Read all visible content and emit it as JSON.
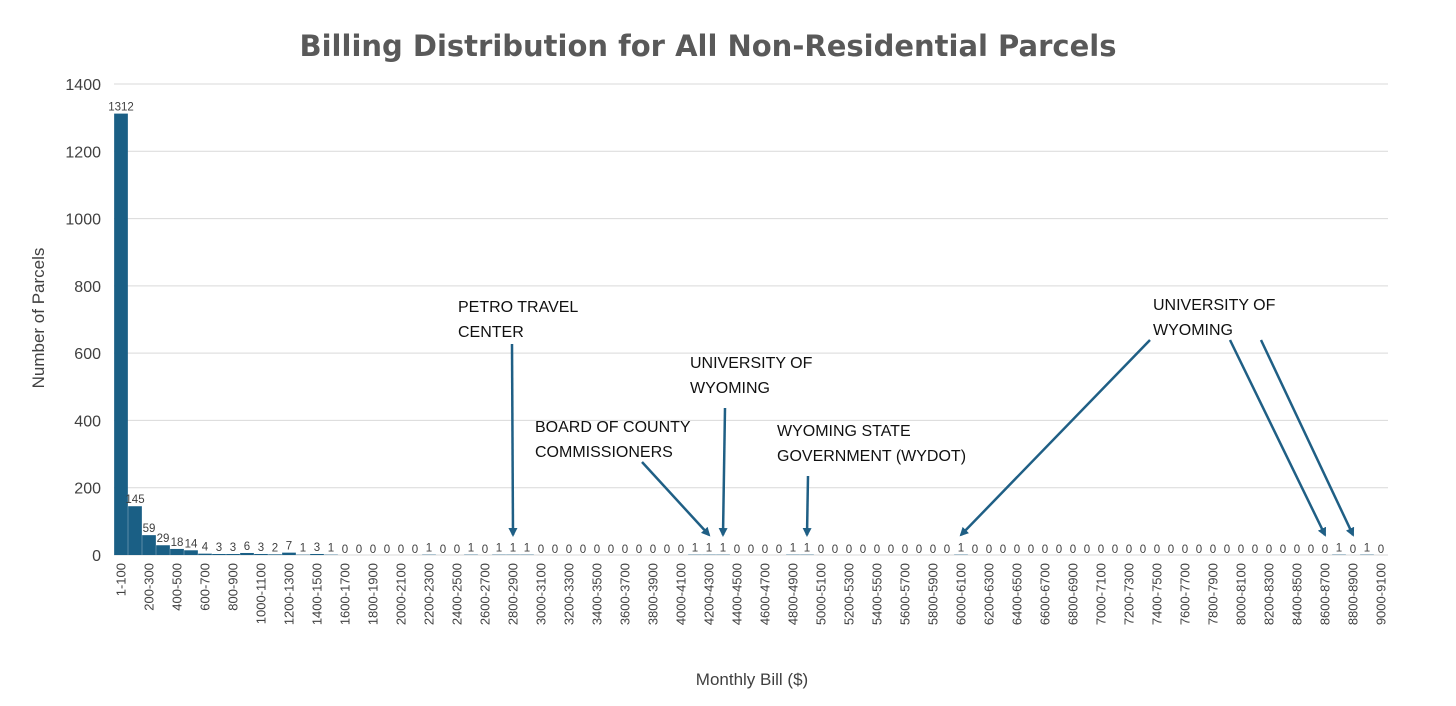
{
  "chart_data": {
    "type": "bar",
    "title": "Billing Distribution for All Non-Residential Parcels",
    "xlabel": "Monthly Bill ($)",
    "ylabel": "Number of Parcels",
    "ylim": [
      0,
      1400
    ],
    "yticks": [
      0,
      200,
      400,
      600,
      800,
      1000,
      1200,
      1400
    ],
    "grid": true,
    "bar_color": "#1a5f85",
    "categories": [
      "1-100",
      "100-200",
      "200-300",
      "300-400",
      "400-500",
      "500-600",
      "600-700",
      "700-800",
      "800-900",
      "900-1000",
      "1000-1100",
      "1100-1200",
      "1200-1300",
      "1300-1400",
      "1400-1500",
      "1500-1600",
      "1600-1700",
      "1700-1800",
      "1800-1900",
      "1900-2000",
      "2000-2100",
      "2100-2200",
      "2200-2300",
      "2300-2400",
      "2400-2500",
      "2500-2600",
      "2600-2700",
      "2700-2800",
      "2800-2900",
      "2900-3000",
      "3000-3100",
      "3100-3200",
      "3200-3300",
      "3300-3400",
      "3400-3500",
      "3500-3600",
      "3600-3700",
      "3700-3800",
      "3800-3900",
      "3900-4000",
      "4000-4100",
      "4100-4200",
      "4200-4300",
      "4300-4400",
      "4400-4500",
      "4500-4600",
      "4600-4700",
      "4700-4800",
      "4800-4900",
      "4900-5000",
      "5000-5100",
      "5100-5200",
      "5200-5300",
      "5300-5400",
      "5400-5500",
      "5500-5600",
      "5600-5700",
      "5700-5800",
      "5800-5900",
      "5900-6000",
      "6000-6100",
      "6100-6200",
      "6200-6300",
      "6300-6400",
      "6400-6500",
      "6500-6600",
      "6600-6700",
      "6700-6800",
      "6800-6900",
      "6900-7000",
      "7000-7100",
      "7100-7200",
      "7200-7300",
      "7300-7400",
      "7400-7500",
      "7500-7600",
      "7600-7700",
      "7700-7800",
      "7800-7900",
      "7900-8000",
      "8000-8100",
      "8100-8200",
      "8200-8300",
      "8300-8400",
      "8400-8500",
      "8500-8600",
      "8600-8700",
      "8700-8800",
      "8800-8900",
      "8900-9000",
      "9000-9100"
    ],
    "values": [
      1312,
      145,
      59,
      29,
      18,
      14,
      4,
      3,
      3,
      6,
      3,
      2,
      7,
      1,
      3,
      1,
      0,
      0,
      0,
      0,
      0,
      0,
      1,
      0,
      0,
      1,
      0,
      1,
      1,
      1,
      0,
      0,
      0,
      0,
      0,
      0,
      0,
      0,
      0,
      0,
      0,
      1,
      1,
      1,
      0,
      0,
      0,
      0,
      1,
      1,
      0,
      0,
      0,
      0,
      0,
      0,
      0,
      0,
      0,
      0,
      1,
      0,
      0,
      0,
      0,
      0,
      0,
      0,
      0,
      0,
      0,
      0,
      0,
      0,
      0,
      0,
      0,
      0,
      0,
      0,
      0,
      0,
      0,
      0,
      0,
      0,
      0,
      1,
      0,
      1,
      0
    ],
    "annotations": [
      {
        "id": "petro",
        "lines": [
          "PETRO TRAVEL",
          "CENTER"
        ],
        "category": "2800-2900"
      },
      {
        "id": "board",
        "lines": [
          "BOARD OF COUNTY",
          "COMMISSIONERS"
        ],
        "category": "4200-4300"
      },
      {
        "id": "uw1",
        "lines": [
          "UNIVERSITY OF",
          "WYOMING"
        ],
        "category": "4300-4400"
      },
      {
        "id": "wydot",
        "lines": [
          "WYOMING STATE",
          "GOVERNMENT (WYDOT)"
        ],
        "category": "4900-5000"
      },
      {
        "id": "uw2",
        "lines": [
          "UNIVERSITY OF",
          "WYOMING"
        ],
        "categories": [
          "6000-6100",
          "8600-8700",
          "8800-8900"
        ]
      }
    ]
  }
}
